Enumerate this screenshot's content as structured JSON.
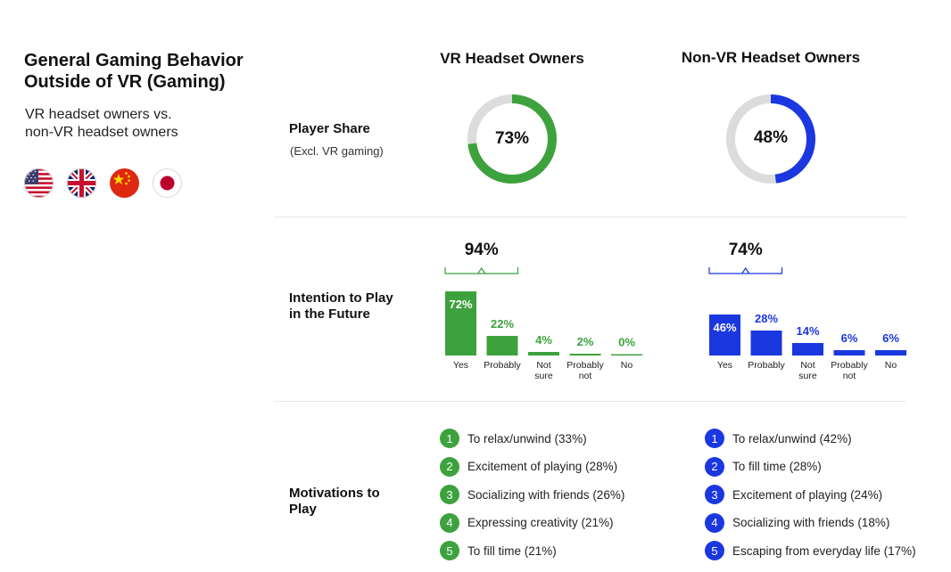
{
  "header": {
    "title_line1": "General Gaming Behavior",
    "title_line2": "Outside of VR (Gaming)",
    "subtitle_line1": "VR headset owners vs.",
    "subtitle_line2": "non-VR headset owners",
    "flags": [
      "us-flag",
      "uk-flag",
      "china-flag",
      "japan-flag"
    ]
  },
  "columns": {
    "vr": "VR Headset Owners",
    "nonvr": "Non-VR Headset Owners"
  },
  "rows": {
    "player_share": "Player Share",
    "player_share_sub": "(Excl. VR gaming)",
    "intention_line1": "Intention to Play",
    "intention_line2": "in the Future",
    "motivations_line1": "Motivations to",
    "motivations_line2": "Play"
  },
  "colors": {
    "vr": "#3da23d",
    "nonvr": "#1a37e0",
    "track": "#dcdcdc"
  },
  "chart_data": [
    {
      "type": "pie",
      "chart": "player-share-vr",
      "values": [
        73,
        27
      ],
      "label": "73%"
    },
    {
      "type": "pie",
      "chart": "player-share-nonvr",
      "values": [
        48,
        52
      ],
      "label": "48%"
    },
    {
      "type": "bar",
      "chart": "intention-vr",
      "categories": [
        [
          "Yes"
        ],
        [
          "Probably"
        ],
        [
          "Not",
          "sure"
        ],
        [
          "Probably",
          "not"
        ],
        [
          "No"
        ]
      ],
      "values": [
        72,
        22,
        4,
        2,
        0
      ],
      "labels": [
        "72%",
        "22%",
        "4%",
        "2%",
        "0%"
      ],
      "bracket_total": "94%"
    },
    {
      "type": "bar",
      "chart": "intention-nonvr",
      "categories": [
        [
          "Yes"
        ],
        [
          "Probably"
        ],
        [
          "Not",
          "sure"
        ],
        [
          "Probably",
          "not"
        ],
        [
          "No"
        ]
      ],
      "values": [
        46,
        28,
        14,
        6,
        6
      ],
      "labels": [
        "46%",
        "28%",
        "14%",
        "6%",
        "6%"
      ],
      "bracket_total": "74%"
    }
  ],
  "motivations": {
    "vr": [
      {
        "num": "1",
        "text": "To relax/unwind (33%)"
      },
      {
        "num": "2",
        "text": "Excitement of playing (28%)"
      },
      {
        "num": "3",
        "text": "Socializing with friends (26%)"
      },
      {
        "num": "4",
        "text": "Expressing creativity (21%)"
      },
      {
        "num": "5",
        "text": "To fill time (21%)"
      }
    ],
    "nonvr": [
      {
        "num": "1",
        "text": "To relax/unwind (42%)"
      },
      {
        "num": "2",
        "text": "To fill time (28%)"
      },
      {
        "num": "3",
        "text": "Excitement of playing (24%)"
      },
      {
        "num": "4",
        "text": "Socializing with friends (18%)"
      },
      {
        "num": "5",
        "text": "Escaping from everyday life (17%)"
      }
    ]
  }
}
